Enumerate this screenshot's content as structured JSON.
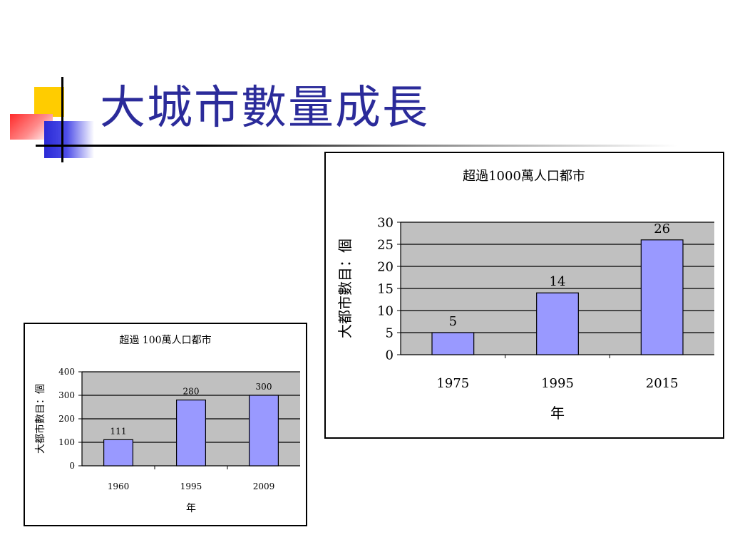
{
  "slide": {
    "title": "大城市數量成長"
  },
  "chart_data": [
    {
      "type": "bar",
      "title": "超過1000萬人口都市",
      "xlabel": "年",
      "ylabel": "大都市數目：個",
      "categories": [
        "1975",
        "1995",
        "2015"
      ],
      "values": [
        5,
        14,
        26
      ],
      "ylim": [
        0,
        30
      ],
      "yticks": [
        0,
        5,
        10,
        15,
        20,
        25,
        30
      ],
      "grid": true,
      "legend": "none",
      "bar_color": "#9999ff",
      "plot_bg": "#c0c0c0"
    },
    {
      "type": "bar",
      "title": "超過 100萬人口都市",
      "xlabel": "年",
      "ylabel": "大都市數目：個",
      "categories": [
        "1960",
        "1995",
        "2009"
      ],
      "values": [
        111,
        280,
        300
      ],
      "ylim": [
        0,
        400
      ],
      "yticks": [
        0,
        100,
        200,
        300,
        400
      ],
      "grid": true,
      "legend": "none",
      "bar_color": "#9999ff",
      "plot_bg": "#c0c0c0"
    }
  ]
}
